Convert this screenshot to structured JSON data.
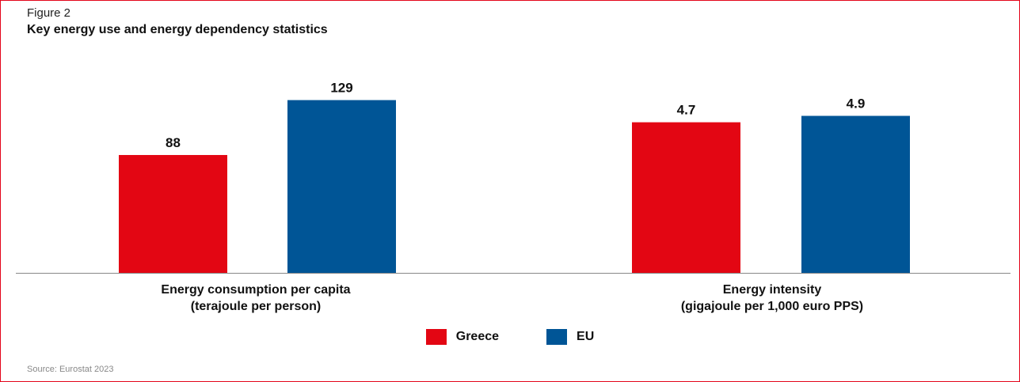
{
  "figure": {
    "label": "Figure 2",
    "title": "Key energy use and energy dependency statistics",
    "source": "Source: Eurostat 2023"
  },
  "colors": {
    "greece": "#e30613",
    "eu": "#005596",
    "axis": "#888888",
    "frame": "#e3051b"
  },
  "chart_data": {
    "type": "bar",
    "grid": false,
    "legend_position": "bottom-center",
    "series": [
      {
        "name": "Greece",
        "color": "#e30613"
      },
      {
        "name": "EU",
        "color": "#005596"
      }
    ],
    "groups": [
      {
        "label_lines": [
          "Energy consumption per capita",
          "(terajoule per person)"
        ],
        "values": [
          88,
          129
        ],
        "value_labels": [
          "88",
          "129"
        ],
        "ylim": [
          0,
          150
        ]
      },
      {
        "label_lines": [
          "Energy intensity",
          "(gigajoule per 1,000 euro PPS)"
        ],
        "values": [
          4.7,
          4.9
        ],
        "value_labels": [
          "4.7",
          "4.9"
        ],
        "ylim": [
          0,
          6.27
        ]
      }
    ]
  }
}
